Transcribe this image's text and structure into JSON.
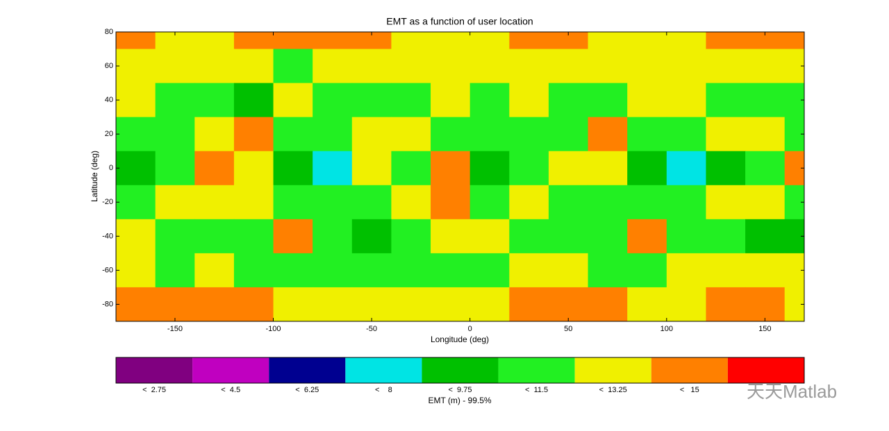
{
  "chart_data": {
    "type": "contour",
    "title": "EMT as a function of user location",
    "xlabel": "Longitude (deg)",
    "ylabel": "Latitude (deg)",
    "xlim": [
      -180,
      170
    ],
    "ylim": [
      -90,
      80
    ],
    "xticks": [
      -150,
      -100,
      -50,
      0,
      50,
      100,
      150
    ],
    "yticks": [
      -80,
      -60,
      -40,
      -20,
      0,
      20,
      40,
      60,
      80
    ],
    "x": [
      -170,
      -150,
      -130,
      -110,
      -90,
      -70,
      -50,
      -30,
      -10,
      10,
      30,
      50,
      70,
      90,
      110,
      130,
      150,
      170
    ],
    "y": [
      80,
      60,
      40,
      20,
      0,
      -20,
      -40,
      -60,
      -80
    ],
    "z": [
      [
        14,
        12.5,
        12.5,
        14,
        14,
        14,
        14,
        12.5,
        12.5,
        12.5,
        14,
        14,
        12.5,
        12.5,
        12.5,
        14,
        14,
        14
      ],
      [
        12.5,
        12.5,
        12.5,
        12.5,
        10.5,
        12.5,
        12.5,
        12.5,
        12.5,
        12.5,
        12.5,
        12.5,
        12.5,
        12.5,
        12.5,
        12.5,
        12.5,
        12.5
      ],
      [
        12.5,
        10.5,
        10.5,
        9,
        12.5,
        10.5,
        10.5,
        10.5,
        12.5,
        10.5,
        12.5,
        10.5,
        10.5,
        12.5,
        12.5,
        10.5,
        10.5,
        10.5
      ],
      [
        10.5,
        10.5,
        12.5,
        14,
        10.5,
        10.5,
        12.5,
        12.5,
        10.5,
        10.5,
        10.5,
        10.5,
        14,
        10.5,
        10.5,
        12.5,
        12.5,
        10.5
      ],
      [
        9,
        10.5,
        14,
        12.5,
        9,
        7.5,
        12.5,
        10.5,
        14,
        9,
        10.5,
        12.5,
        12.5,
        9,
        7.5,
        9,
        10.5,
        14
      ],
      [
        10.5,
        12.5,
        12.5,
        12.5,
        10.5,
        10.5,
        10.5,
        12.5,
        14,
        10.5,
        12.5,
        10.5,
        10.5,
        10.5,
        10.5,
        12.5,
        12.5,
        10.5
      ],
      [
        12.5,
        10.5,
        10.5,
        10.5,
        14,
        10.5,
        9,
        10.5,
        12.5,
        12.5,
        10.5,
        10.5,
        10.5,
        14,
        10.5,
        10.5,
        9,
        9
      ],
      [
        12.5,
        10.5,
        12.5,
        10.5,
        10.5,
        10.5,
        10.5,
        10.5,
        10.5,
        10.5,
        12.5,
        12.5,
        10.5,
        10.5,
        12.5,
        12.5,
        12.5,
        12.5
      ],
      [
        14,
        14,
        14,
        14,
        12.5,
        12.5,
        12.5,
        12.5,
        12.5,
        12.5,
        14,
        14,
        14,
        12.5,
        12.5,
        14,
        14,
        12.5
      ]
    ],
    "colorbar": {
      "label": "EMT (m) - 99.5%",
      "levels": [
        {
          "value": 2.75,
          "label": "<  2.75"
        },
        {
          "value": 4.5,
          "label": "<  4.5"
        },
        {
          "value": 6.25,
          "label": "<  6.25"
        },
        {
          "value": 8,
          "label": "<    8"
        },
        {
          "value": 9.75,
          "label": "<  9.75"
        },
        {
          "value": 11.5,
          "label": "<  11.5"
        },
        {
          "value": 13.25,
          "label": "<  13.25"
        },
        {
          "value": 15,
          "label": "<   15"
        }
      ],
      "colors": [
        "#800080",
        "#c000c0",
        "#000090",
        "#00e4e4",
        "#00c000",
        "#22f022",
        "#f0f000",
        "#ff8000",
        "#ff0000"
      ]
    },
    "watermark": "天天Matlab"
  }
}
